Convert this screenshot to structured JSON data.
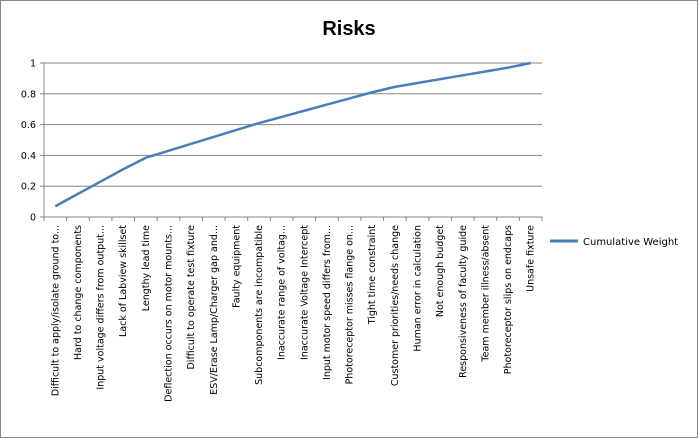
{
  "chart_data": {
    "type": "line",
    "title": "Risks",
    "xlabel": "",
    "ylabel": "",
    "ylim": [
      0,
      1
    ],
    "yticks": [
      "0",
      "0.2",
      "0.4",
      "0.6",
      "0.8",
      "1"
    ],
    "grid": true,
    "legend": "right",
    "categories": [
      "Difficult to apply/isolate ground to...",
      "Hard to change components",
      "Input voltage differs from output...",
      "Lack of Labview skillset",
      "Lengthy lead time",
      "Deflection occurs on motor mounts...",
      "Difficult to operate test fixture",
      "ESV/Erase Lamp/Charger gap and...",
      "Faulty equipment",
      "Subcomponents are incompatible",
      "Inaccurate range of voltag...",
      "Inaccurate Voltage Intercept",
      "Input motor speed differs from...",
      "Photoreceptor misses flange on...",
      "Tight time constraint",
      "Customer priorities/needs change",
      "Human error in calculation",
      "Not enough budget",
      "Responsiveness of faculty guide",
      "Team member illness/absent",
      "Photoreceptor slips on endcaps",
      "Unsafe fixture"
    ],
    "series": [
      {
        "name": "Cumulative Weight",
        "color": "#4a7ebb",
        "values": [
          0.07,
          0.15,
          0.23,
          0.31,
          0.385,
          0.43,
          0.475,
          0.52,
          0.565,
          0.61,
          0.65,
          0.69,
          0.73,
          0.77,
          0.81,
          0.845,
          0.87,
          0.895,
          0.92,
          0.945,
          0.97,
          1.0
        ]
      }
    ]
  }
}
